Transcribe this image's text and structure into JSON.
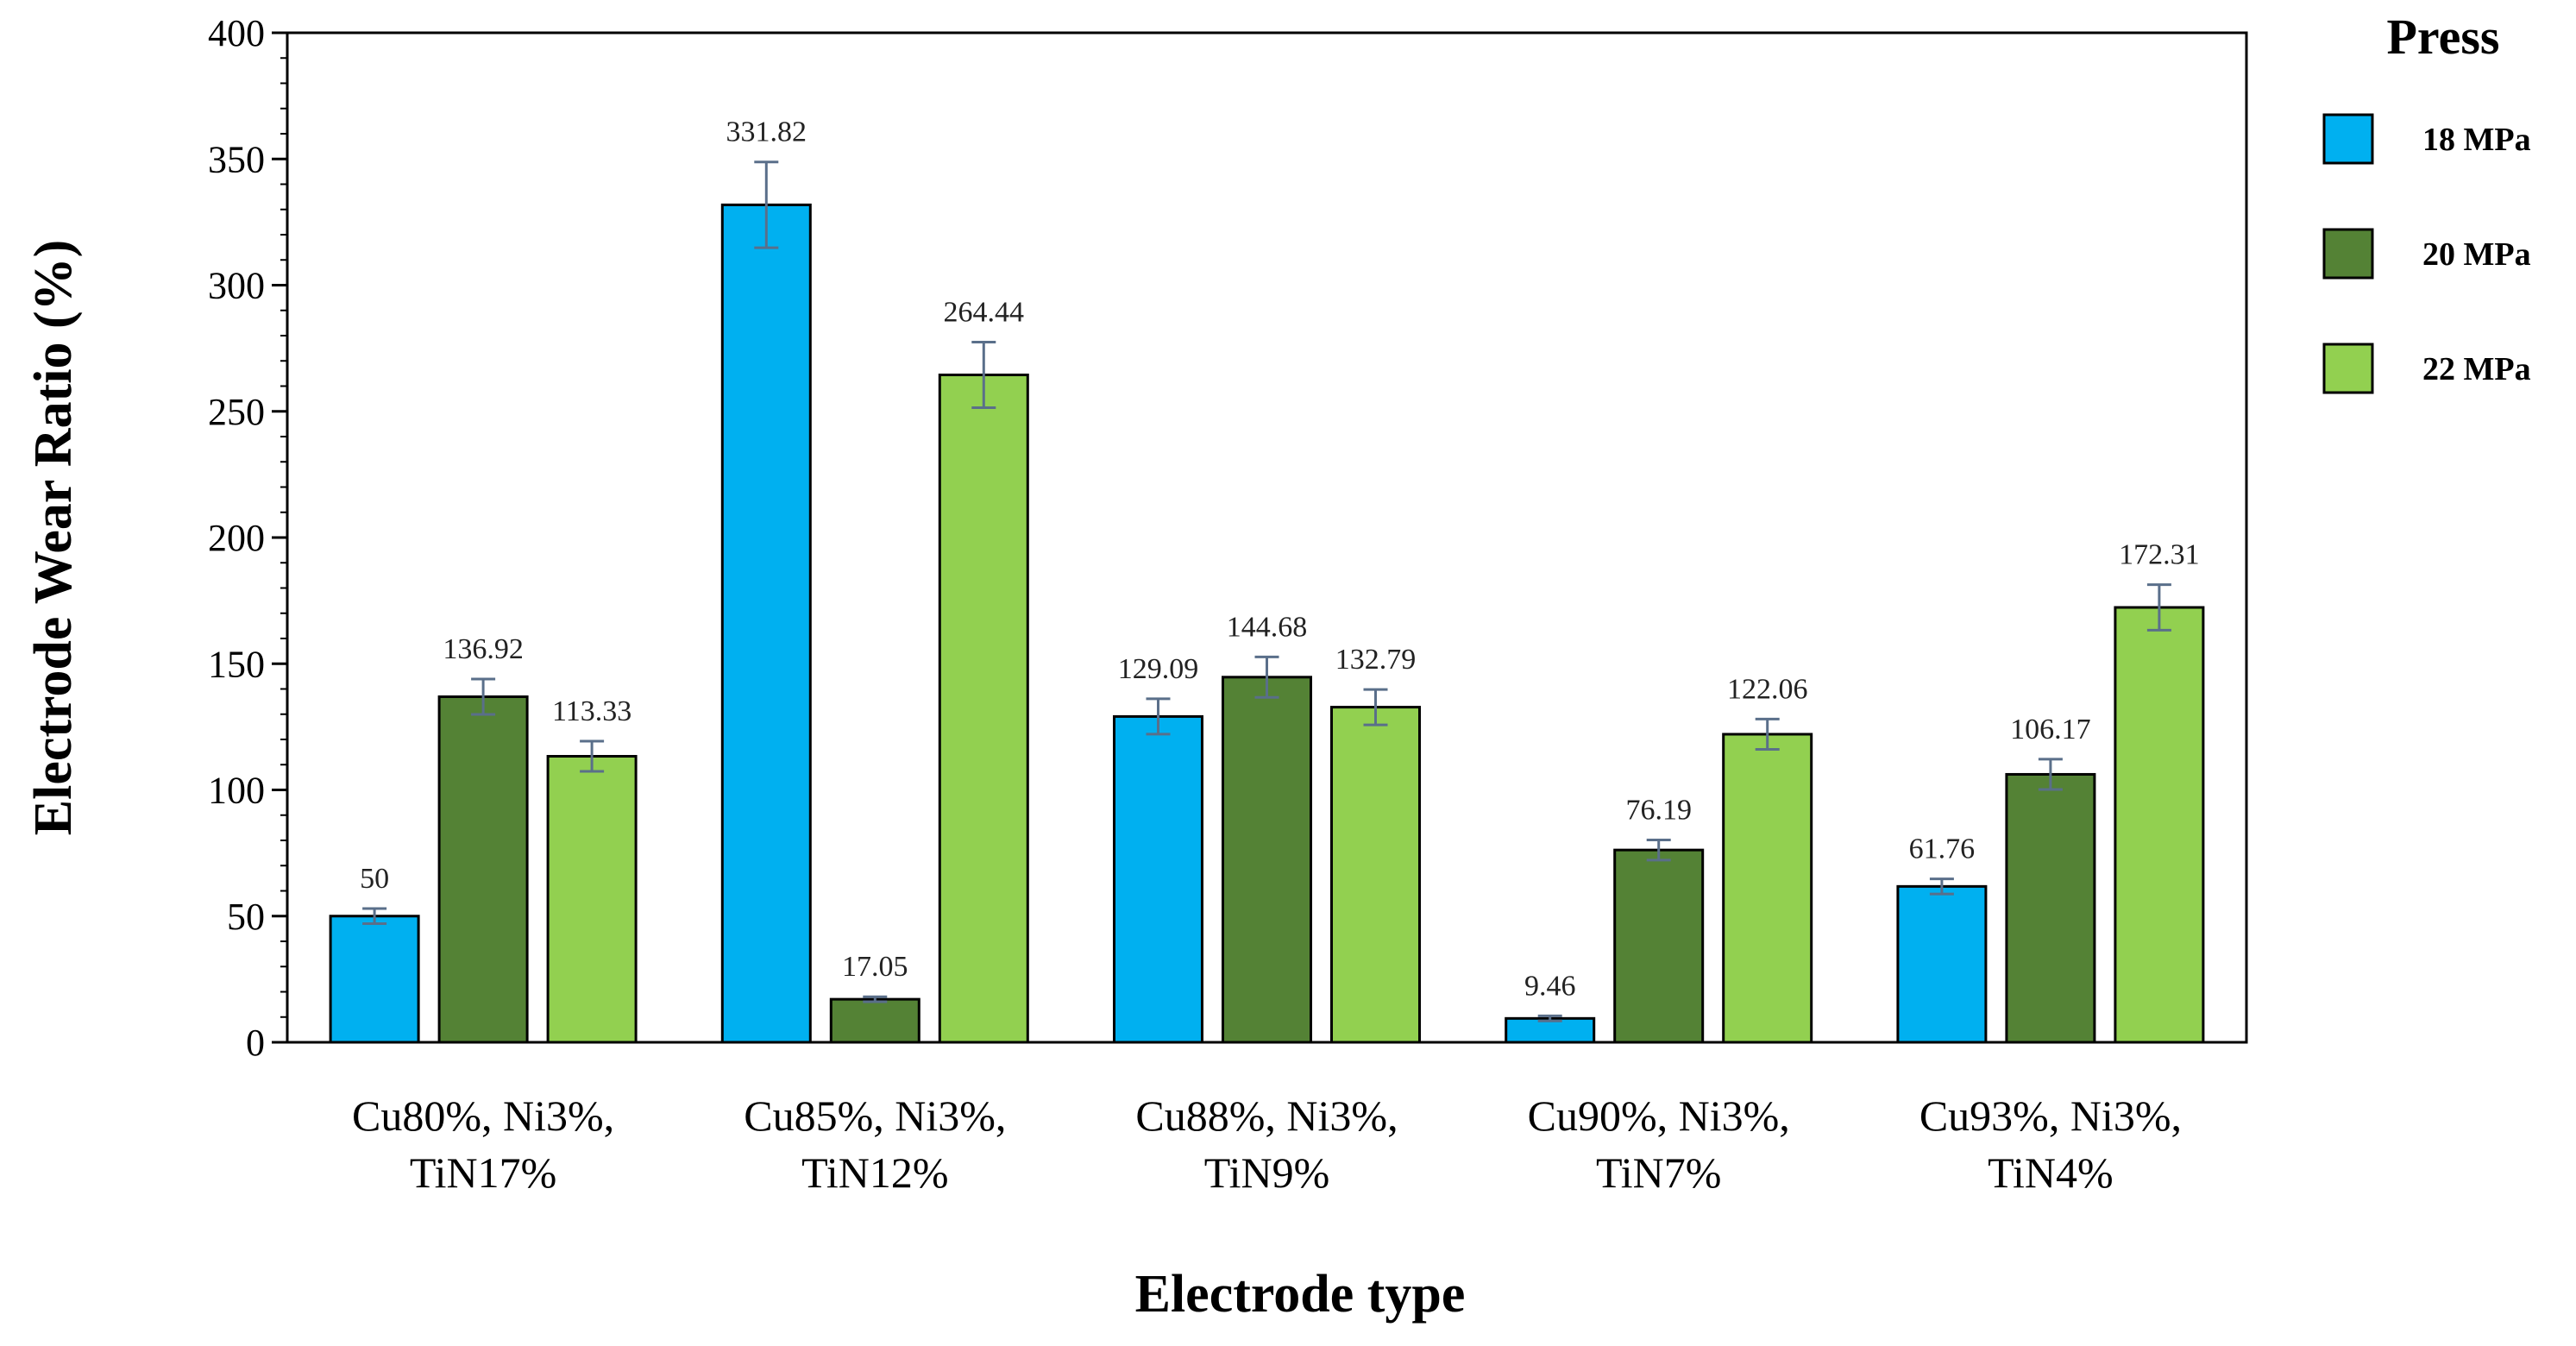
{
  "chart_data": {
    "type": "bar",
    "title": "",
    "xlabel": "Electrode type",
    "ylabel": "Electrode  Wear Ratio (%)",
    "ylim": [
      0,
      400
    ],
    "yticks": [
      "0",
      "50",
      "100",
      "150",
      "200",
      "250",
      "300",
      "350",
      "400"
    ],
    "categories": [
      [
        "Cu80%, Ni3%,",
        "TiN17%"
      ],
      [
        "Cu85%, Ni3%,",
        "TiN12%"
      ],
      [
        "Cu88%, Ni3%,",
        "TiN9%"
      ],
      [
        "Cu90%, Ni3%,",
        "TiN7%"
      ],
      [
        "Cu93%, Ni3%,",
        "TiN4%"
      ]
    ],
    "legend_title": "Press",
    "legend_position": "right",
    "series": [
      {
        "name": "18 MPa",
        "color": "#00b0f0",
        "values": [
          50,
          331.82,
          129.09,
          9.46,
          61.76
        ],
        "labels": [
          "50",
          "331.82",
          "129.09",
          "9.46",
          "61.76"
        ],
        "errors": [
          3,
          17,
          7,
          1,
          3
        ]
      },
      {
        "name": "20 MPa",
        "color": "#548235",
        "values": [
          136.92,
          17.05,
          144.68,
          76.19,
          106.17
        ],
        "labels": [
          "136.92",
          "17.05",
          "144.68",
          "76.19",
          "106.17"
        ],
        "errors": [
          7,
          1,
          8,
          4,
          6
        ]
      },
      {
        "name": "22 MPa",
        "color": "#92d050",
        "values": [
          113.33,
          264.44,
          132.79,
          122.06,
          172.31
        ],
        "labels": [
          "113.33",
          "264.44",
          "132.79",
          "122.06",
          "172.31"
        ],
        "errors": [
          6,
          13,
          7,
          6,
          9
        ]
      }
    ]
  }
}
